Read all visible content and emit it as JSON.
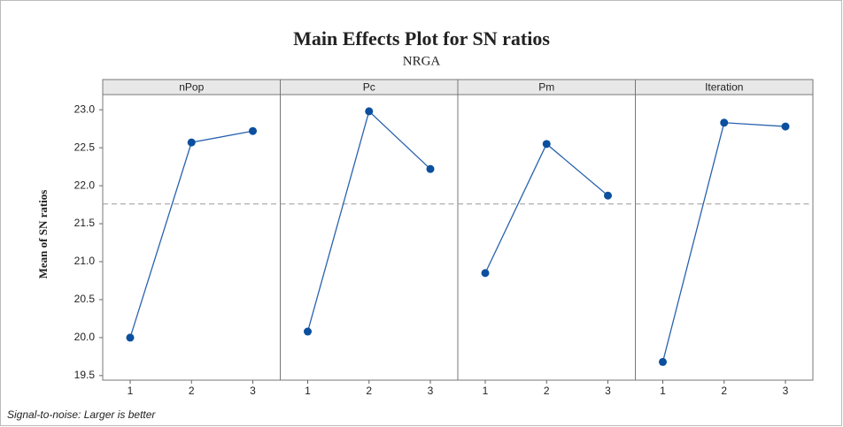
{
  "chart_data": {
    "type": "line",
    "title": "Main Effects Plot for SN ratios",
    "subtitle": "NRGA",
    "y_label": "Mean of SN ratios",
    "footnote": "Signal-to-noise: Larger is better",
    "color": "#2a62ad",
    "panels": [
      {
        "title": "nPop",
        "categories": [
          "1",
          "2",
          "3"
        ],
        "values": [
          20.0,
          22.57,
          22.72
        ]
      },
      {
        "title": "Pc",
        "categories": [
          "1",
          "2",
          "3"
        ],
        "values": [
          20.08,
          22.98,
          22.22
        ]
      },
      {
        "title": "Pm",
        "categories": [
          "1",
          "2",
          "3"
        ],
        "values": [
          20.85,
          22.55,
          21.87
        ]
      },
      {
        "title": "Iteration",
        "categories": [
          "1",
          "2",
          "3"
        ],
        "values": [
          19.68,
          22.83,
          22.78
        ]
      }
    ],
    "reference_line": 21.76,
    "ylim": [
      19.44,
      23.2
    ],
    "yticks": [
      {
        "value": 19.5,
        "label": "19.5"
      },
      {
        "value": 20,
        "label": "20.0"
      },
      {
        "value": 20.5,
        "label": "20.5"
      },
      {
        "value": 21,
        "label": "21.0"
      },
      {
        "value": 21.5,
        "label": "21.5"
      },
      {
        "value": 22,
        "label": "22.0"
      },
      {
        "value": 22.5,
        "label": "22.5"
      },
      {
        "value": 23,
        "label": "23.0"
      }
    ]
  }
}
